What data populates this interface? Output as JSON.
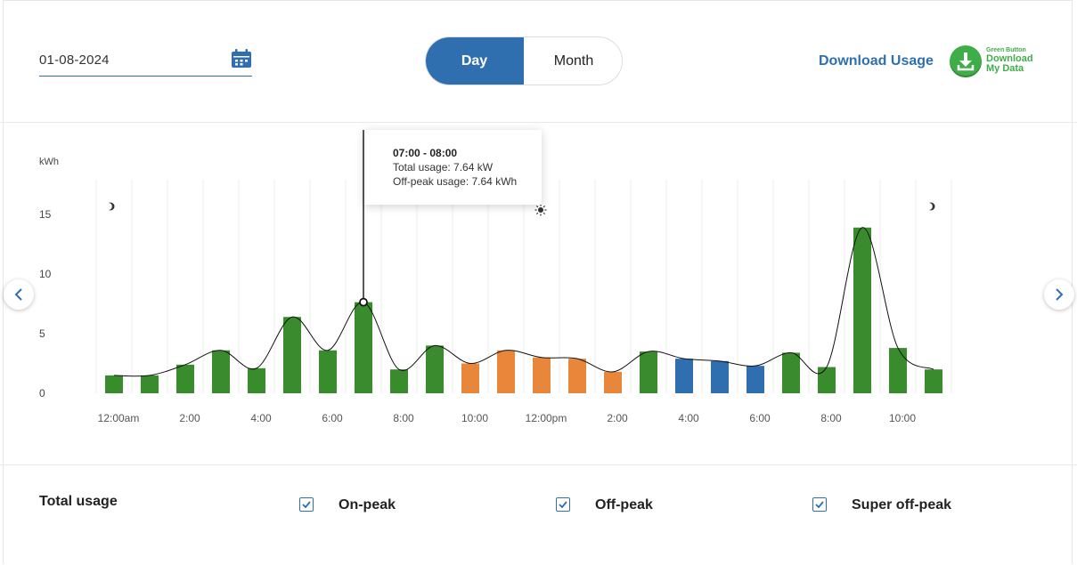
{
  "header": {
    "date_value": "01-08-2024",
    "toggle": {
      "day_label": "Day",
      "month_label": "Month",
      "selected": "Day"
    },
    "download_usage_label": "Download Usage",
    "green_button": {
      "small_text": "Green Button",
      "line1": "Download",
      "line2": "My Data"
    }
  },
  "colors": {
    "on_peak": "#e8873a",
    "off_peak": "#3a8a2e",
    "super_off_peak": "#2f6fb0",
    "accent": "#2f6fb0",
    "green_button": "#3fae49"
  },
  "tooltip": {
    "title": "07:00 - 08:00",
    "total_usage": "Total usage: 7.64 kW",
    "off_peak_usage": "Off-peak usage: 7.64 kWh"
  },
  "chart_data": {
    "type": "bar",
    "ylabel": "kWh",
    "ylim": [
      0,
      18
    ],
    "yticks": [
      0,
      5,
      10,
      15
    ],
    "x_tick_labels": [
      "12:00am",
      "2:00",
      "4:00",
      "6:00",
      "8:00",
      "10:00",
      "12:00pm",
      "2:00",
      "4:00",
      "6:00",
      "8:00",
      "10:00"
    ],
    "categories": [
      "0",
      "1",
      "2",
      "3",
      "4",
      "5",
      "6",
      "7",
      "8",
      "9",
      "10",
      "11",
      "12",
      "13",
      "14",
      "15",
      "16",
      "17",
      "18",
      "19",
      "20",
      "21",
      "22",
      "23"
    ],
    "values": [
      1.5,
      1.5,
      2.4,
      3.6,
      2.1,
      6.4,
      3.6,
      7.64,
      2.0,
      4.0,
      2.5,
      3.6,
      3.0,
      2.9,
      1.8,
      3.5,
      2.9,
      2.7,
      2.3,
      3.4,
      2.2,
      13.9,
      3.8,
      2.0
    ],
    "periods": [
      "off_peak",
      "off_peak",
      "off_peak",
      "off_peak",
      "off_peak",
      "off_peak",
      "off_peak",
      "off_peak",
      "off_peak",
      "off_peak",
      "on_peak",
      "on_peak",
      "on_peak",
      "on_peak",
      "on_peak",
      "off_peak",
      "super_off_peak",
      "super_off_peak",
      "super_off_peak",
      "off_peak",
      "off_peak",
      "off_peak",
      "off_peak",
      "off_peak"
    ],
    "highlight_index": 7,
    "icons": [
      "moon-icon",
      "sun-icon",
      "moon-icon"
    ]
  },
  "legend": {
    "total_label": "Total usage",
    "items": [
      {
        "label": "On-peak",
        "checked": true
      },
      {
        "label": "Off-peak",
        "checked": true
      },
      {
        "label": "Super off-peak",
        "checked": true
      }
    ]
  }
}
